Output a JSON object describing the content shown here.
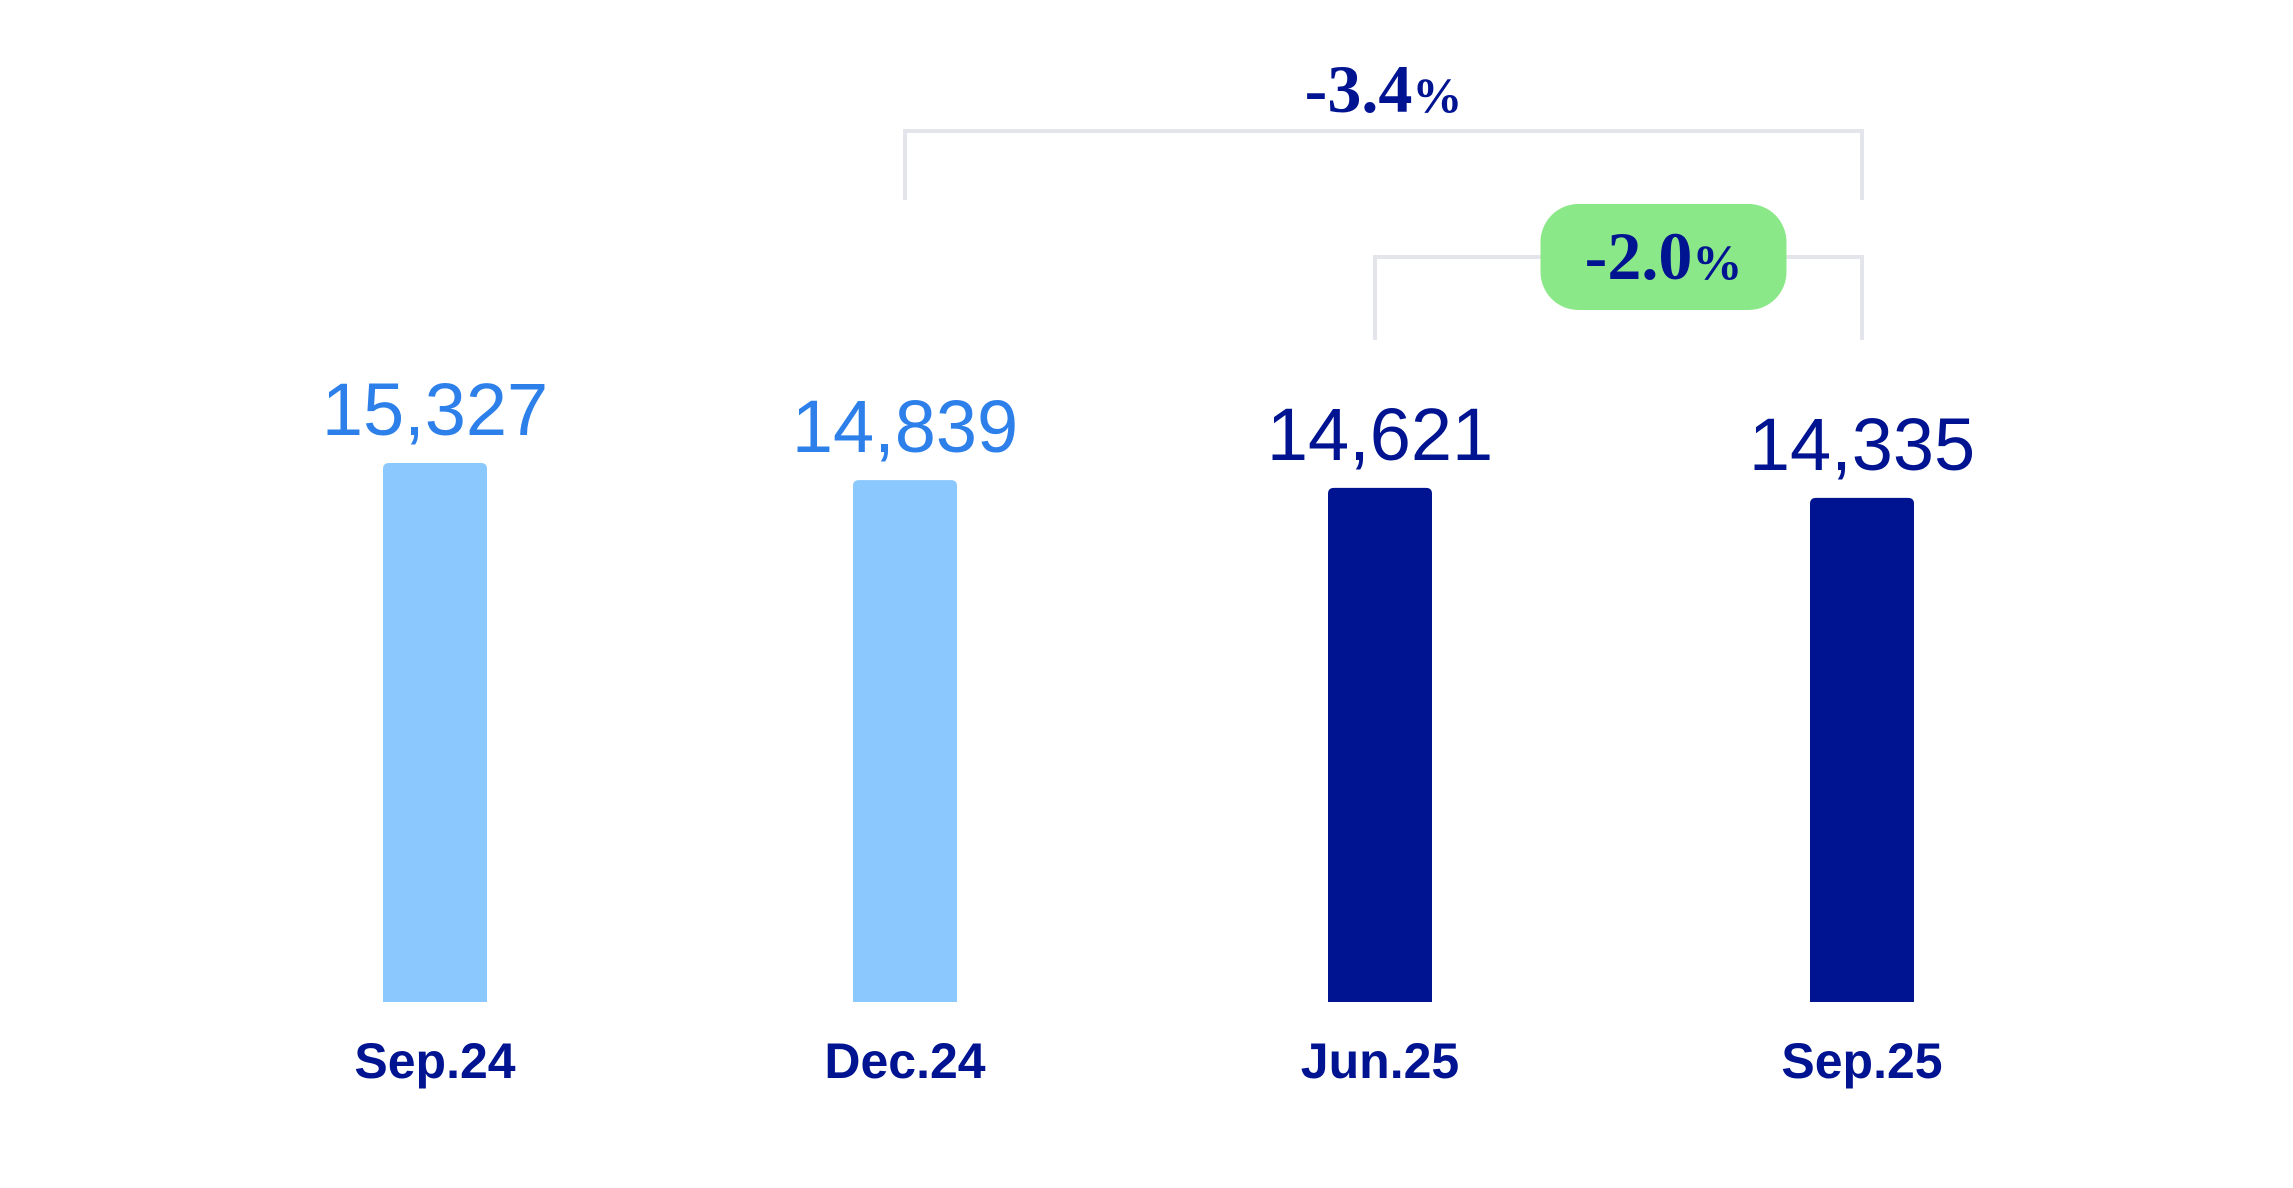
{
  "chart_data": {
    "type": "bar",
    "categories": [
      "Sep.24",
      "Dec.24",
      "Jun.25",
      "Sep.25"
    ],
    "values": [
      15327,
      14839,
      14621,
      14335
    ],
    "value_labels": [
      "15,327",
      "14,839",
      "14,621",
      "14,335"
    ],
    "bar_colors": [
      "#8AC8FD",
      "#8AC8FD",
      "#001391",
      "#001391"
    ],
    "value_label_colors": [
      "#2D80EA",
      "#2D80EA",
      "#001391",
      "#001391"
    ],
    "category_label_color": "#001391",
    "title": "",
    "xlabel": "",
    "ylabel": "",
    "ylim": [
      0,
      15500
    ],
    "grid": false,
    "annotations": [
      {
        "from_index": 1,
        "to_index": 3,
        "label": "-3.4",
        "suffix": "%",
        "highlighted": false,
        "text_color": "#001391"
      },
      {
        "from_index": 2,
        "to_index": 3,
        "label": "-2.0",
        "suffix": "%",
        "highlighted": true,
        "badge_color": "#8BE888",
        "text_color": "#001391"
      }
    ],
    "bracket_color": "#E3E5EA"
  }
}
